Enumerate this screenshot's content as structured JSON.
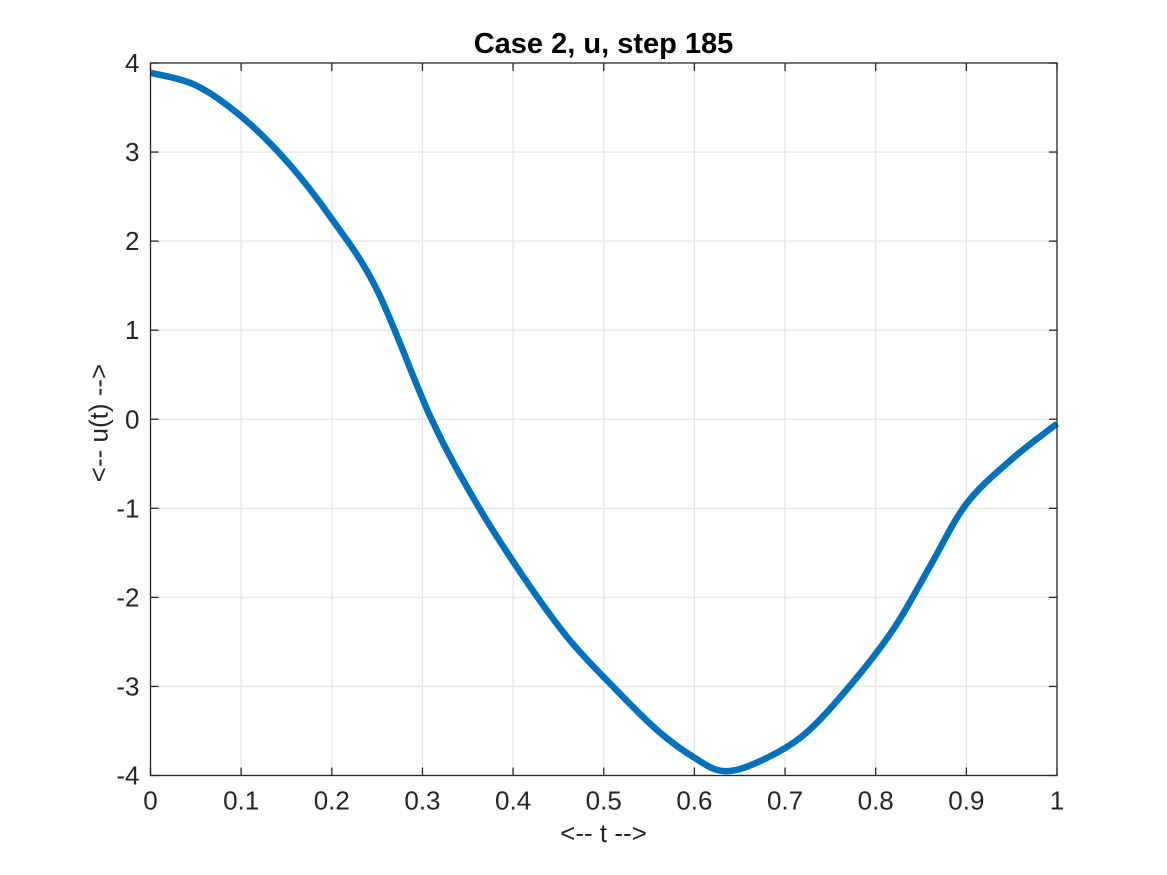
{
  "figure": {
    "title": "Case 2, u, step 185",
    "xlabel": "<-- t -->",
    "ylabel": "<-- u(t) -->"
  },
  "colors": {
    "line": "#0072BD",
    "axis": "#262626",
    "grid": "#e6e6e6",
    "tick_label": "#262626",
    "title": "#000000",
    "background": "#ffffff"
  },
  "chart_data": {
    "type": "line",
    "title": "Case 2, u, step 185",
    "xlabel": "<-- t -->",
    "ylabel": "<-- u(t) -->",
    "xlim": [
      0,
      1
    ],
    "ylim": [
      -4,
      4
    ],
    "xticks": [
      0,
      0.1,
      0.2,
      0.3,
      0.4,
      0.5,
      0.6,
      0.7,
      0.8,
      0.9,
      1
    ],
    "xtick_labels": [
      "0",
      "0.1",
      "0.2",
      "0.3",
      "0.4",
      "0.5",
      "0.6",
      "0.7",
      "0.8",
      "0.9",
      "1"
    ],
    "yticks": [
      -4,
      -3,
      -2,
      -1,
      0,
      1,
      2,
      3,
      4
    ],
    "ytick_labels": [
      "-4",
      "-3",
      "-2",
      "-1",
      "0",
      "1",
      "2",
      "3",
      "4"
    ],
    "grid": true,
    "box": true,
    "legend": "none",
    "line_width": 6.5,
    "series": [
      {
        "name": "u",
        "x": [
          0,
          0.05,
          0.1,
          0.15,
          0.2,
          0.25,
          0.31,
          0.36,
          0.41,
          0.46,
          0.51,
          0.56,
          0.6,
          0.632,
          0.67,
          0.72,
          0.771,
          0.82,
          0.86,
          0.9,
          0.95,
          1.0
        ],
        "y": [
          3.89,
          3.75,
          3.4,
          2.9,
          2.25,
          1.45,
          0.0,
          -0.95,
          -1.75,
          -2.45,
          -3.0,
          -3.5,
          -3.8,
          -3.95,
          -3.85,
          -3.55,
          -3.0,
          -2.35,
          -1.65,
          -0.95,
          -0.45,
          -0.05
        ]
      }
    ],
    "key_points": {
      "start": [
        0,
        3.89
      ],
      "zero_crossing": [
        0.31,
        0
      ],
      "minimum": [
        0.632,
        -3.95
      ],
      "end": [
        1.0,
        -0.05
      ]
    }
  }
}
